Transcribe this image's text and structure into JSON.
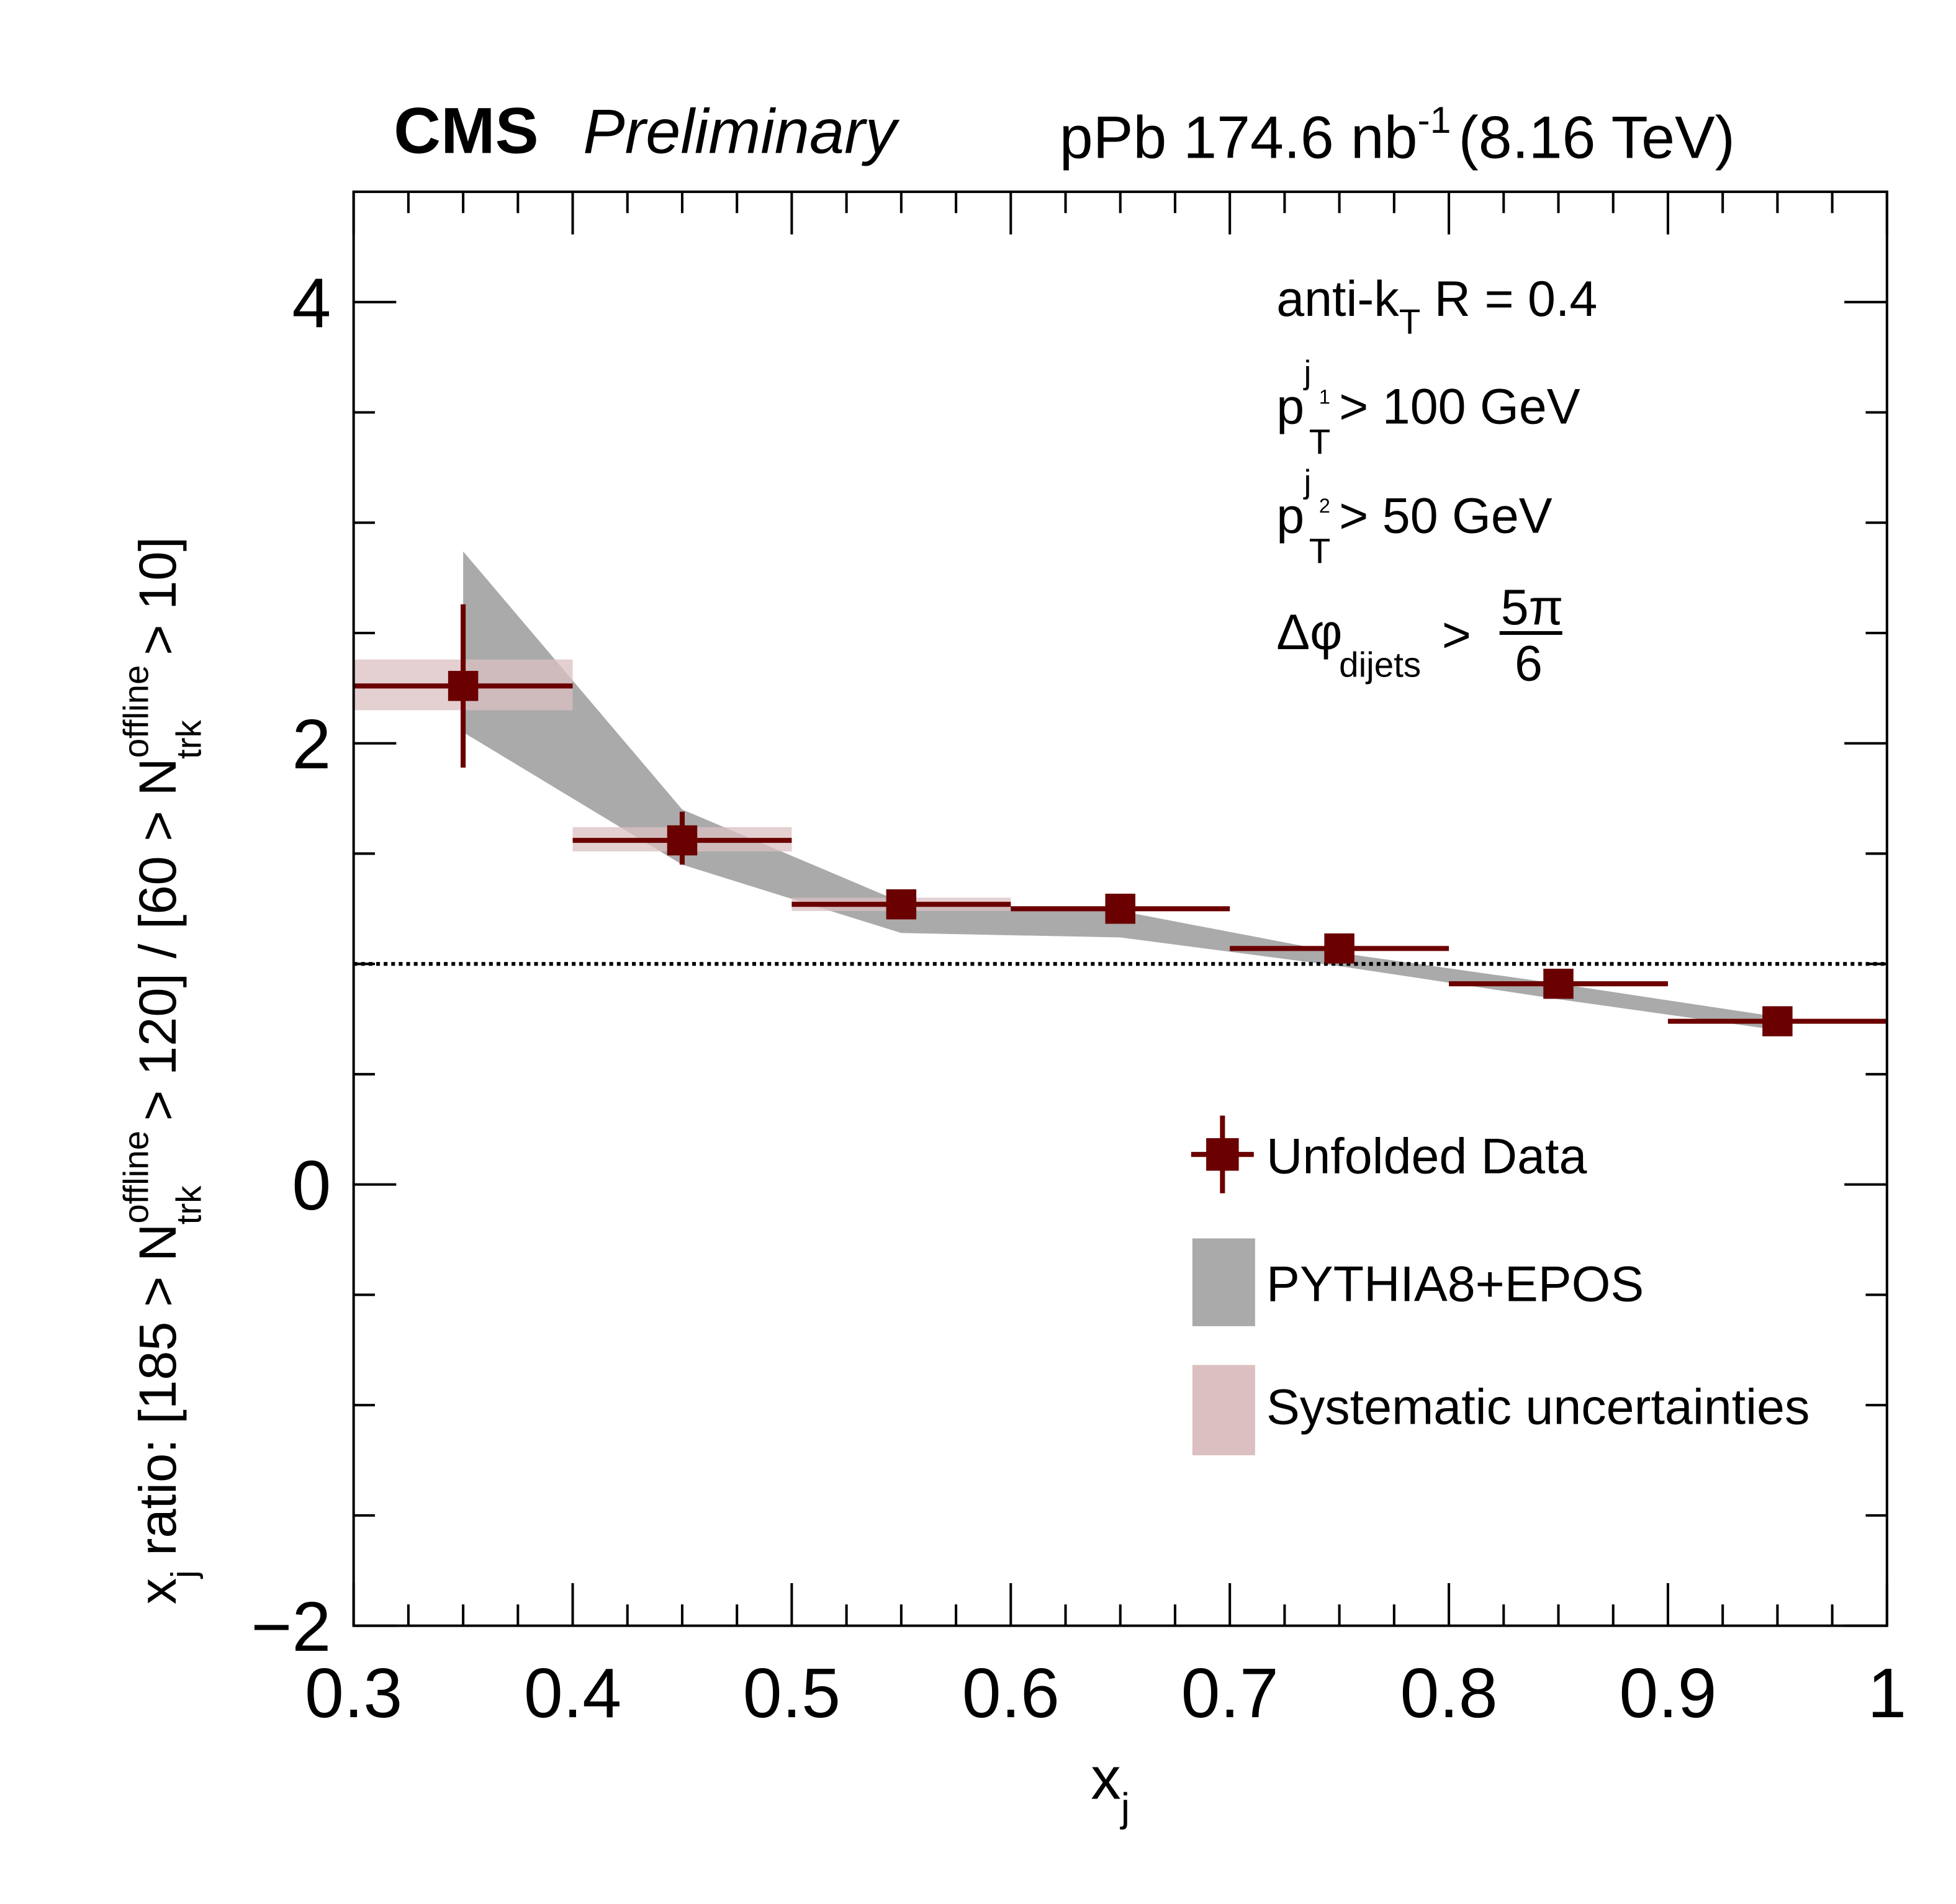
{
  "chart_data": {
    "type": "scatter",
    "header": {
      "experiment": "CMS",
      "status": "Preliminary",
      "lumi_prefix": "pPb 174.6 nb",
      "lumi_exp": "-1",
      "energy": "(8.16 TeV)"
    },
    "xlabel": "x",
    "xlabel_sub": "j",
    "ylabel": {
      "p1": "x",
      "p1sub": "j",
      "p2": " ratio: [185 > N",
      "sup1": "offline",
      "sub1": "trk",
      "p3": " > 120] / [60 > N",
      "sup2": "offline",
      "sub2": "trk",
      "p4": " > 10]"
    },
    "xlim": [
      0.3,
      1.0
    ],
    "ylim": [
      -2,
      4.5
    ],
    "xticks": [
      "0.3",
      "0.4",
      "0.5",
      "0.6",
      "0.7",
      "0.8",
      "0.9",
      "1"
    ],
    "xtick_values": [
      0.3,
      0.4,
      0.5,
      0.6,
      0.7,
      0.8,
      0.9,
      1.0
    ],
    "yticks": [
      "−2",
      "0",
      "2",
      "4"
    ],
    "ytick_values": [
      -2,
      0,
      2,
      4
    ],
    "reference_line": 1.0,
    "annotations": {
      "jet": {
        "a": "anti-k",
        "sub": "T",
        "b": " R = 0.4"
      },
      "pt1": {
        "p": "p",
        "sub": "T",
        "sup": "j",
        "supsub": "1",
        "b": " > 100 GeV"
      },
      "pt2": {
        "p": "p",
        "sub": "T",
        "sup": "j",
        "supsub": "2",
        "b": " > 50 GeV"
      },
      "dphi": {
        "a": "Δφ",
        "sub": "dijets",
        "b": " > ",
        "num": "5π",
        "den": "6"
      }
    },
    "series": [
      {
        "name": "Unfolded Data",
        "color": "#6b0000",
        "x": [
          0.35,
          0.45,
          0.55,
          0.65,
          0.75,
          0.85,
          0.95
        ],
        "xerr": 0.05,
        "y": [
          2.26,
          1.56,
          1.27,
          1.25,
          1.07,
          0.91,
          0.74
        ],
        "yerr_low": [
          0.37,
          0.11,
          0.02,
          0.02,
          0.02,
          0.02,
          0.02
        ],
        "yerr_high": [
          0.37,
          0.13,
          0.02,
          0.02,
          0.02,
          0.02,
          0.02
        ],
        "sys_low": [
          2.15,
          1.51,
          1.24,
          1.24,
          1.06,
          0.9,
          0.73
        ],
        "sys_high": [
          2.38,
          1.62,
          1.3,
          1.26,
          1.08,
          0.92,
          0.75
        ]
      },
      {
        "name": "PYTHIA8+EPOS",
        "color": "#aaaaaa",
        "x": [
          0.35,
          0.45,
          0.55,
          0.65,
          0.75,
          0.85,
          0.95
        ],
        "upper": [
          2.87,
          1.7,
          1.28,
          1.24,
          1.05,
          0.91,
          0.76
        ],
        "lower": [
          2.05,
          1.45,
          1.14,
          1.12,
          0.99,
          0.84,
          0.7
        ]
      },
      {
        "name": "Systematic uncertainties",
        "color": "#dbbfc1"
      }
    ],
    "legend_position": "bottom-right"
  }
}
